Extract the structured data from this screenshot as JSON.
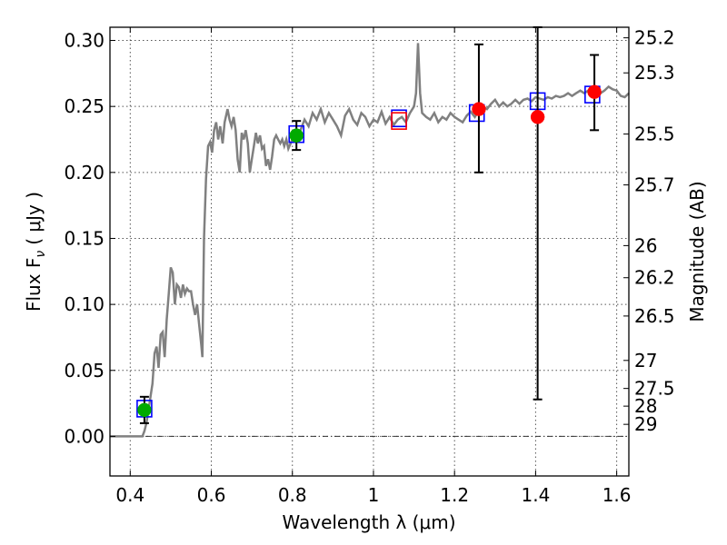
{
  "chart_data": {
    "type": "scatter",
    "xlabel": "Wavelength  λ (μm)",
    "ylabel": "Flux  F",
    "ylabel_sub": "ν",
    "ylabel_unit": "( μJy )",
    "y2label": "Magnitude (AB)",
    "xlim": [
      0.35,
      1.63
    ],
    "ylim": [
      -0.03,
      0.31
    ],
    "x_ticks": [
      0.4,
      0.6,
      0.8,
      1.0,
      1.2,
      1.4,
      1.6
    ],
    "x_tick_labels": [
      "0.4",
      "0.6",
      "0.8",
      "1",
      "1.2",
      "1.4",
      "1.6"
    ],
    "y_ticks": [
      0.0,
      0.05,
      0.1,
      0.15,
      0.2,
      0.25,
      0.3
    ],
    "y_tick_labels": [
      "0.00",
      "0.05",
      "0.10",
      "0.15",
      "0.20",
      "0.25",
      "0.30"
    ],
    "y2_tick_labels": [
      "25.2",
      "25.3",
      "25.5",
      "25.7",
      "26",
      "26.2",
      "26.5",
      "27",
      "27.5",
      "28",
      "29"
    ],
    "grid": true,
    "model_color": "#808080",
    "model_spectrum": [
      [
        0.35,
        0.0
      ],
      [
        0.43,
        0.0
      ],
      [
        0.435,
        0.004
      ],
      [
        0.44,
        0.01
      ],
      [
        0.445,
        0.02
      ],
      [
        0.45,
        0.03
      ],
      [
        0.455,
        0.04
      ],
      [
        0.46,
        0.063
      ],
      [
        0.465,
        0.068
      ],
      [
        0.47,
        0.052
      ],
      [
        0.475,
        0.077
      ],
      [
        0.48,
        0.079
      ],
      [
        0.485,
        0.06
      ],
      [
        0.49,
        0.089
      ],
      [
        0.495,
        0.108
      ],
      [
        0.5,
        0.128
      ],
      [
        0.505,
        0.124
      ],
      [
        0.51,
        0.1
      ],
      [
        0.515,
        0.115
      ],
      [
        0.52,
        0.113
      ],
      [
        0.525,
        0.105
      ],
      [
        0.53,
        0.115
      ],
      [
        0.535,
        0.108
      ],
      [
        0.54,
        0.112
      ],
      [
        0.545,
        0.11
      ],
      [
        0.55,
        0.11
      ],
      [
        0.555,
        0.1
      ],
      [
        0.56,
        0.092
      ],
      [
        0.565,
        0.1
      ],
      [
        0.57,
        0.085
      ],
      [
        0.575,
        0.07
      ],
      [
        0.578,
        0.06
      ],
      [
        0.582,
        0.15
      ],
      [
        0.587,
        0.195
      ],
      [
        0.592,
        0.22
      ],
      [
        0.597,
        0.223
      ],
      [
        0.602,
        0.215
      ],
      [
        0.607,
        0.232
      ],
      [
        0.612,
        0.238
      ],
      [
        0.617,
        0.225
      ],
      [
        0.622,
        0.235
      ],
      [
        0.628,
        0.222
      ],
      [
        0.633,
        0.238
      ],
      [
        0.64,
        0.248
      ],
      [
        0.645,
        0.24
      ],
      [
        0.65,
        0.235
      ],
      [
        0.655,
        0.242
      ],
      [
        0.66,
        0.232
      ],
      [
        0.665,
        0.21
      ],
      [
        0.67,
        0.2
      ],
      [
        0.675,
        0.23
      ],
      [
        0.68,
        0.225
      ],
      [
        0.685,
        0.232
      ],
      [
        0.69,
        0.222
      ],
      [
        0.695,
        0.2
      ],
      [
        0.7,
        0.21
      ],
      [
        0.705,
        0.22
      ],
      [
        0.71,
        0.23
      ],
      [
        0.715,
        0.222
      ],
      [
        0.72,
        0.228
      ],
      [
        0.725,
        0.218
      ],
      [
        0.73,
        0.22
      ],
      [
        0.735,
        0.205
      ],
      [
        0.74,
        0.21
      ],
      [
        0.745,
        0.202
      ],
      [
        0.75,
        0.212
      ],
      [
        0.755,
        0.225
      ],
      [
        0.76,
        0.228
      ],
      [
        0.765,
        0.225
      ],
      [
        0.77,
        0.222
      ],
      [
        0.775,
        0.225
      ],
      [
        0.78,
        0.22
      ],
      [
        0.785,
        0.225
      ],
      [
        0.79,
        0.218
      ],
      [
        0.8,
        0.225
      ],
      [
        0.81,
        0.228
      ],
      [
        0.82,
        0.232
      ],
      [
        0.83,
        0.24
      ],
      [
        0.84,
        0.235
      ],
      [
        0.85,
        0.245
      ],
      [
        0.86,
        0.24
      ],
      [
        0.87,
        0.248
      ],
      [
        0.88,
        0.238
      ],
      [
        0.89,
        0.245
      ],
      [
        0.9,
        0.24
      ],
      [
        0.91,
        0.235
      ],
      [
        0.92,
        0.228
      ],
      [
        0.93,
        0.243
      ],
      [
        0.94,
        0.248
      ],
      [
        0.95,
        0.24
      ],
      [
        0.96,
        0.236
      ],
      [
        0.97,
        0.245
      ],
      [
        0.98,
        0.242
      ],
      [
        0.99,
        0.235
      ],
      [
        1.0,
        0.24
      ],
      [
        1.01,
        0.238
      ],
      [
        1.02,
        0.246
      ],
      [
        1.03,
        0.237
      ],
      [
        1.04,
        0.242
      ],
      [
        1.05,
        0.236
      ],
      [
        1.06,
        0.24
      ],
      [
        1.07,
        0.242
      ],
      [
        1.08,
        0.238
      ],
      [
        1.09,
        0.245
      ],
      [
        1.1,
        0.25
      ],
      [
        1.105,
        0.26
      ],
      [
        1.11,
        0.298
      ],
      [
        1.115,
        0.26
      ],
      [
        1.12,
        0.245
      ],
      [
        1.13,
        0.242
      ],
      [
        1.14,
        0.24
      ],
      [
        1.15,
        0.245
      ],
      [
        1.16,
        0.238
      ],
      [
        1.17,
        0.242
      ],
      [
        1.18,
        0.24
      ],
      [
        1.19,
        0.245
      ],
      [
        1.2,
        0.242
      ],
      [
        1.21,
        0.24
      ],
      [
        1.22,
        0.238
      ],
      [
        1.23,
        0.243
      ],
      [
        1.24,
        0.246
      ],
      [
        1.25,
        0.242
      ],
      [
        1.26,
        0.247
      ],
      [
        1.27,
        0.25
      ],
      [
        1.28,
        0.248
      ],
      [
        1.29,
        0.252
      ],
      [
        1.3,
        0.255
      ],
      [
        1.31,
        0.25
      ],
      [
        1.32,
        0.253
      ],
      [
        1.33,
        0.25
      ],
      [
        1.34,
        0.252
      ],
      [
        1.35,
        0.255
      ],
      [
        1.36,
        0.252
      ],
      [
        1.37,
        0.255
      ],
      [
        1.38,
        0.256
      ],
      [
        1.39,
        0.254
      ],
      [
        1.4,
        0.257
      ],
      [
        1.41,
        0.256
      ],
      [
        1.42,
        0.255
      ],
      [
        1.43,
        0.257
      ],
      [
        1.44,
        0.256
      ],
      [
        1.45,
        0.258
      ],
      [
        1.46,
        0.257
      ],
      [
        1.47,
        0.258
      ],
      [
        1.48,
        0.26
      ],
      [
        1.49,
        0.258
      ],
      [
        1.5,
        0.26
      ],
      [
        1.51,
        0.262
      ],
      [
        1.52,
        0.26
      ],
      [
        1.53,
        0.262
      ],
      [
        1.54,
        0.264
      ],
      [
        1.55,
        0.263
      ],
      [
        1.56,
        0.26
      ],
      [
        1.57,
        0.262
      ],
      [
        1.58,
        0.265
      ],
      [
        1.59,
        0.263
      ],
      [
        1.6,
        0.262
      ],
      [
        1.61,
        0.258
      ],
      [
        1.62,
        0.257
      ],
      [
        1.63,
        0.26
      ]
    ],
    "model_boxes": [
      {
        "x": 0.435,
        "y": 0.021,
        "edge": "#0000ff"
      },
      {
        "x": 0.81,
        "y": 0.229,
        "edge": "#0000ff"
      },
      {
        "x": 1.063,
        "y": 0.241,
        "edge": "#0000ff"
      },
      {
        "x": 1.063,
        "y": 0.239,
        "edge": "#ff0000"
      },
      {
        "x": 1.255,
        "y": 0.245,
        "edge": "#0000ff"
      },
      {
        "x": 1.405,
        "y": 0.254,
        "edge": "#0000ff"
      },
      {
        "x": 1.54,
        "y": 0.259,
        "edge": "#0000ff"
      }
    ],
    "observations": [
      {
        "x": 0.435,
        "y": 0.02,
        "err_low": 0.01,
        "err_high": 0.03,
        "color": "#00aa00"
      },
      {
        "x": 0.81,
        "y": 0.228,
        "err_low": 0.217,
        "err_high": 0.239,
        "color": "#00aa00"
      },
      {
        "x": 1.26,
        "y": 0.248,
        "err_low": 0.2,
        "err_high": 0.297,
        "color": "#ff0000"
      },
      {
        "x": 1.405,
        "y": 0.242,
        "err_low": 0.028,
        "err_high": 0.31,
        "color": "#ff0000"
      },
      {
        "x": 1.545,
        "y": 0.261,
        "err_low": 0.232,
        "err_high": 0.289,
        "color": "#ff0000"
      }
    ]
  }
}
